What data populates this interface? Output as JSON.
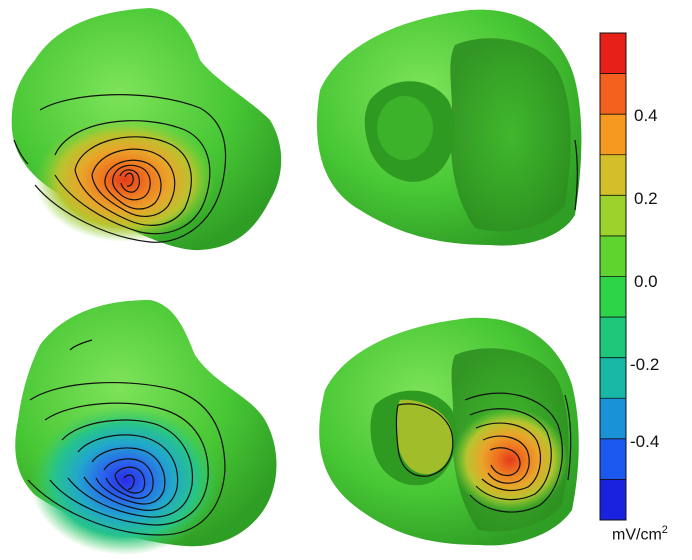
{
  "colorbar": {
    "tick_labels": [
      "0.4",
      "0.2",
      "0.0",
      "-0.2",
      "-0.4"
    ],
    "unit_text": "mV/cm",
    "unit_superscript": "2",
    "colors_top_to_bottom": [
      "#e8201a",
      "#f4611e",
      "#f59a1e",
      "#d2bf2a",
      "#9bd22c",
      "#5fd42e",
      "#2ed447",
      "#1fc77a",
      "#18b7a6",
      "#1992d8",
      "#1c59f0",
      "#1a22e0"
    ]
  },
  "panels": [
    {
      "name": "top-left-heart",
      "extremum": "positive"
    },
    {
      "name": "top-right-heart",
      "extremum": "none"
    },
    {
      "name": "bottom-left-heart",
      "extremum": "negative"
    },
    {
      "name": "bottom-right-heart",
      "extremum": "positive"
    }
  ],
  "colors": {
    "heart_green": "#46c633",
    "heart_green_light": "#6ee04a",
    "heart_green_dark": "#2a9a1f",
    "contour_line": "#111111"
  }
}
